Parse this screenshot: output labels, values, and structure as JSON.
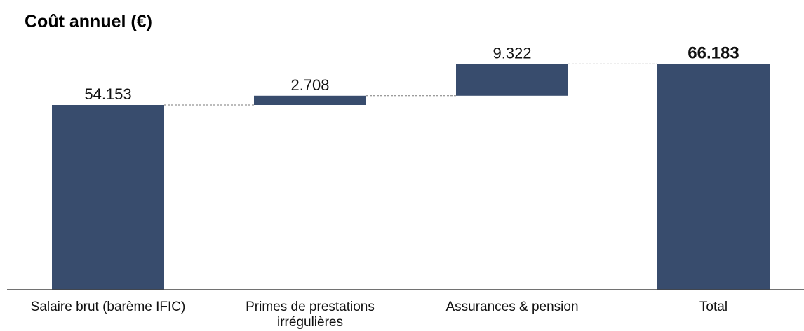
{
  "chart_data": {
    "type": "bar",
    "subtype": "waterfall",
    "title": "Coût annuel (€)",
    "xlabel": "",
    "ylabel": "",
    "categories": [
      [
        "Salaire brut (barème IFIC)"
      ],
      [
        "Primes de prestations",
        "irrégulières"
      ],
      [
        "Assurances & pension"
      ],
      [
        "Total"
      ]
    ],
    "values": [
      54153,
      2708,
      9322,
      66183
    ],
    "value_labels": [
      "54.153",
      "2.708",
      "9.322",
      "66.183"
    ],
    "bar_kinds": [
      "base",
      "increment",
      "increment",
      "total"
    ],
    "ylim": [
      0,
      70000
    ],
    "grid": false,
    "legend": "none",
    "colors": {
      "bar": "#384c6d",
      "connector": "#7a7a7a",
      "axis": "#444444"
    }
  }
}
